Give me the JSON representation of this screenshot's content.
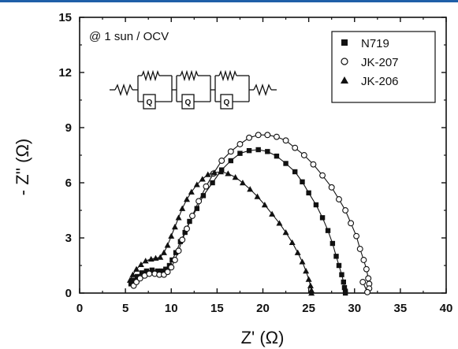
{
  "chart_data": {
    "type": "scatter",
    "annotation": "@ 1 sun / OCV",
    "xlabel": "Z' (Ω)",
    "ylabel": "- Z'' (Ω)",
    "xlim": [
      0,
      40
    ],
    "ylim": [
      0,
      15
    ],
    "xticks": [
      0,
      5,
      10,
      15,
      20,
      25,
      30,
      35,
      40
    ],
    "yticks": [
      0,
      3,
      6,
      9,
      12,
      15
    ],
    "legend_position": "top-right",
    "circuit_labels": [
      "Q",
      "Q",
      "Q"
    ],
    "series": [
      {
        "name": "N719",
        "marker": "filled-square",
        "x": [
          5.6,
          5.9,
          6.3,
          6.8,
          7.3,
          7.9,
          8.5,
          9.0,
          9.4,
          9.8,
          10.1,
          10.5,
          11.0,
          11.5,
          12.0,
          12.8,
          13.5,
          14.5,
          15.5,
          16.5,
          17.5,
          18.5,
          19.5,
          20.5,
          21.5,
          22.5,
          23.5,
          24.3,
          25.0,
          25.8,
          26.5,
          27.1,
          27.6,
          28.0,
          28.3,
          28.6,
          28.8,
          28.9,
          29.0,
          29.0
        ],
        "y": [
          0.5,
          0.7,
          0.9,
          1.1,
          1.2,
          1.25,
          1.2,
          1.2,
          1.3,
          1.5,
          1.8,
          2.2,
          2.8,
          3.3,
          3.9,
          4.6,
          5.3,
          6.0,
          6.7,
          7.2,
          7.6,
          7.75,
          7.8,
          7.7,
          7.45,
          7.05,
          6.6,
          6.05,
          5.45,
          4.8,
          4.1,
          3.4,
          2.7,
          2.0,
          1.5,
          1.0,
          0.6,
          0.3,
          0.1,
          0.0
        ]
      },
      {
        "name": "JK-207",
        "marker": "open-circle",
        "x": [
          5.9,
          6.2,
          6.6,
          7.1,
          7.6,
          8.2,
          8.7,
          9.2,
          9.6,
          10.0,
          10.4,
          10.8,
          11.2,
          11.7,
          12.3,
          13.0,
          13.8,
          14.6,
          15.5,
          16.5,
          17.5,
          18.5,
          19.5,
          20.5,
          21.5,
          22.5,
          23.5,
          24.5,
          25.5,
          26.5,
          27.5,
          28.3,
          29.0,
          29.6,
          30.2,
          30.6,
          31.0,
          31.3,
          31.5,
          31.6,
          31.6,
          31.4,
          30.9
        ],
        "y": [
          0.4,
          0.6,
          0.8,
          0.95,
          1.05,
          1.05,
          1.0,
          1.0,
          1.15,
          1.4,
          1.8,
          2.3,
          2.9,
          3.5,
          4.2,
          5.0,
          5.8,
          6.5,
          7.2,
          7.7,
          8.1,
          8.45,
          8.6,
          8.6,
          8.5,
          8.3,
          7.9,
          7.5,
          7.0,
          6.4,
          5.75,
          5.1,
          4.5,
          3.8,
          3.1,
          2.4,
          1.8,
          1.3,
          0.8,
          0.5,
          0.25,
          0.05,
          0.6
        ]
      },
      {
        "name": "JK-206",
        "marker": "filled-triangle",
        "x": [
          5.5,
          5.8,
          6.2,
          6.7,
          7.2,
          7.8,
          8.3,
          8.8,
          9.2,
          9.6,
          10.0,
          10.4,
          10.8,
          11.2,
          11.7,
          12.2,
          12.8,
          13.4,
          14.0,
          14.7,
          15.4,
          16.2,
          17.0,
          17.8,
          18.6,
          19.4,
          20.2,
          21.0,
          21.8,
          22.5,
          23.2,
          23.8,
          24.3,
          24.7,
          25.0,
          25.2,
          25.3,
          25.3
        ],
        "y": [
          0.7,
          1.0,
          1.3,
          1.55,
          1.75,
          1.85,
          1.9,
          1.95,
          2.2,
          2.6,
          3.1,
          3.6,
          4.1,
          4.6,
          5.1,
          5.5,
          5.9,
          6.2,
          6.45,
          6.55,
          6.6,
          6.5,
          6.3,
          6.0,
          5.65,
          5.25,
          4.8,
          4.3,
          3.8,
          3.3,
          2.75,
          2.2,
          1.7,
          1.2,
          0.75,
          0.4,
          0.15,
          0.0
        ]
      }
    ]
  }
}
